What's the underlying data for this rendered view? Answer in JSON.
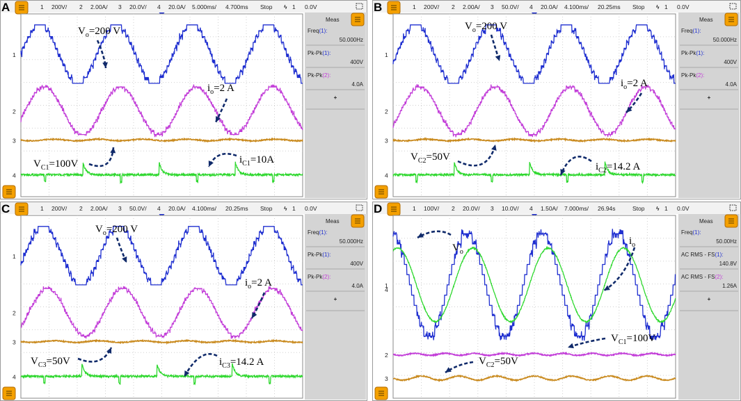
{
  "colors": {
    "ch1": "#1f2fd0",
    "ch2": "#c23cd8",
    "ch3": "#c98a1e",
    "ch4": "#2ed82e",
    "grid": "#d0d0d0",
    "panelbg": "#d4d4d4",
    "iconbg": "#f4a000"
  },
  "panels": [
    {
      "label": "A",
      "header": {
        "ch1": "200V/",
        "ch2": "2.00A/",
        "ch3": "20.0V/",
        "ch4": "20.0A/",
        "timebase": "5.000ms/",
        "delay": "4.700ms",
        "mode": "Stop",
        "trigch": "1",
        "trigval": "0.0V"
      },
      "meas": {
        "title": "Meas",
        "items": [
          {
            "name": "Freq",
            "ch": "(1):",
            "value": "50.000Hz"
          },
          {
            "name": "Pk-Pk",
            "ch": "(1):",
            "value": "400V"
          },
          {
            "name": "Pk-Pk",
            "ch": "(2):",
            "value": "4.0A"
          }
        ],
        "plus": "+"
      },
      "annotations": [
        {
          "base": "V",
          "sub": "o",
          "rest": "=200 V"
        },
        {
          "base": "i",
          "sub": "o",
          "rest": "=2 A"
        },
        {
          "base": "V",
          "sub": "C1",
          "rest": "=100V"
        },
        {
          "base": "i",
          "sub": "C1",
          "rest": "=10A"
        }
      ]
    },
    {
      "label": "B",
      "header": {
        "ch1": "200V/",
        "ch2": "2.00A/",
        "ch3": "50.0V/",
        "ch4": "20.0A/",
        "timebase": "4.100ms/",
        "delay": "20.25ms",
        "mode": "Stop",
        "trigch": "1",
        "trigval": "0.0V"
      },
      "meas": {
        "title": "Meas",
        "items": [
          {
            "name": "Freq",
            "ch": "(1):",
            "value": "50.000Hz"
          },
          {
            "name": "Pk-Pk",
            "ch": "(1):",
            "value": "400V"
          },
          {
            "name": "Pk-Pk",
            "ch": "(2):",
            "value": "4.0A"
          }
        ],
        "plus": "+"
      },
      "annotations": [
        {
          "base": "V",
          "sub": "o",
          "rest": "=200 V"
        },
        {
          "base": "i",
          "sub": "o",
          "rest": "=2 A"
        },
        {
          "base": "V",
          "sub": "C2",
          "rest": "=50V"
        },
        {
          "base": "i",
          "sub": "C2",
          "rest": "=14.2 A"
        }
      ]
    },
    {
      "label": "C",
      "header": {
        "ch1": "200V/",
        "ch2": "2.00A/",
        "ch3": "50.0V/",
        "ch4": "20.0A/",
        "timebase": "4.100ms/",
        "delay": "20.25ms",
        "mode": "Stop",
        "trigch": "1",
        "trigval": "0.0V"
      },
      "meas": {
        "title": "Meas",
        "items": [
          {
            "name": "Freq",
            "ch": "(1):",
            "value": "50.000Hz"
          },
          {
            "name": "Pk-Pk",
            "ch": "(1):",
            "value": "400V"
          },
          {
            "name": "Pk-Pk",
            "ch": "(2):",
            "value": "4.0A"
          }
        ],
        "plus": "+"
      },
      "annotations": [
        {
          "base": "V",
          "sub": "o",
          "rest": "=200 V"
        },
        {
          "base": "i",
          "sub": "o",
          "rest": "=2 A"
        },
        {
          "base": "V",
          "sub": "C3",
          "rest": "=50V"
        },
        {
          "base": "i",
          "sub": "C3",
          "rest": "=14.2 A"
        }
      ]
    },
    {
      "label": "D",
      "header": {
        "ch1": "100V/",
        "ch2": "20.0V/",
        "ch3": "10.0V/",
        "ch4": "1.50A/",
        "timebase": "7.000ms/",
        "delay": "26.94s",
        "mode": "Stop",
        "trigch": "1",
        "trigval": "0.0V"
      },
      "meas": {
        "title": "Meas",
        "items": [
          {
            "name": "Freq",
            "ch": "(1):",
            "value": "50.00Hz"
          },
          {
            "name": "AC RMS - FS",
            "ch": "(1):",
            "value": "140.8V"
          },
          {
            "name": "AC RMS - FS",
            "ch": "(2):",
            "value": "1.26A"
          }
        ],
        "plus": "+"
      },
      "annotations": [
        {
          "base": "V",
          "sub": "o",
          "rest": ""
        },
        {
          "base": "i",
          "sub": "o",
          "rest": ""
        },
        {
          "base": "V",
          "sub": "C1",
          "rest": "=100V"
        },
        {
          "base": "V",
          "sub": "C2",
          "rest": "=50V"
        }
      ]
    }
  ],
  "chart_data": [
    {
      "type": "line",
      "title": "A",
      "series": [
        {
          "name": "Vo",
          "channel": "1",
          "shape": "staircase sine",
          "frequency_hz": 50,
          "peak_to_peak": "400V"
        },
        {
          "name": "io",
          "channel": "2",
          "shape": "stepped sine",
          "frequency_hz": 50,
          "peak_to_peak": "4.0A"
        },
        {
          "name": "VC1",
          "channel": "3",
          "shape": "dc",
          "value": "100V"
        },
        {
          "name": "iC1",
          "channel": "4",
          "shape": "pulsed",
          "value": "10A"
        }
      ]
    },
    {
      "type": "line",
      "title": "B",
      "series": [
        {
          "name": "Vo",
          "channel": "1",
          "shape": "staircase sine",
          "frequency_hz": 50,
          "peak_to_peak": "400V"
        },
        {
          "name": "io",
          "channel": "2",
          "shape": "stepped sine",
          "frequency_hz": 50,
          "peak_to_peak": "4.0A"
        },
        {
          "name": "VC2",
          "channel": "3",
          "shape": "dc",
          "value": "50V"
        },
        {
          "name": "iC2",
          "channel": "4",
          "shape": "pulsed",
          "value": "14.2 A"
        }
      ]
    },
    {
      "type": "line",
      "title": "C",
      "series": [
        {
          "name": "Vo",
          "channel": "1",
          "shape": "staircase sine",
          "frequency_hz": 50,
          "peak_to_peak": "400V"
        },
        {
          "name": "io",
          "channel": "2",
          "shape": "stepped sine",
          "frequency_hz": 50,
          "peak_to_peak": "4.0A"
        },
        {
          "name": "VC3",
          "channel": "3",
          "shape": "dc",
          "value": "50V"
        },
        {
          "name": "iC3",
          "channel": "4",
          "shape": "pulsed",
          "value": "14.2 A"
        }
      ]
    },
    {
      "type": "line",
      "title": "D",
      "series": [
        {
          "name": "Vo",
          "channel": "1",
          "shape": "staircase sine",
          "frequency_hz": 50,
          "ac_rms": "140.8V"
        },
        {
          "name": "io",
          "channel": "4",
          "shape": "sine",
          "frequency_hz": 50,
          "ac_rms": "1.26A"
        },
        {
          "name": "VC1",
          "channel": "2",
          "shape": "dc",
          "value": "100V"
        },
        {
          "name": "VC2",
          "channel": "3",
          "shape": "dc",
          "value": "50V"
        }
      ]
    }
  ]
}
